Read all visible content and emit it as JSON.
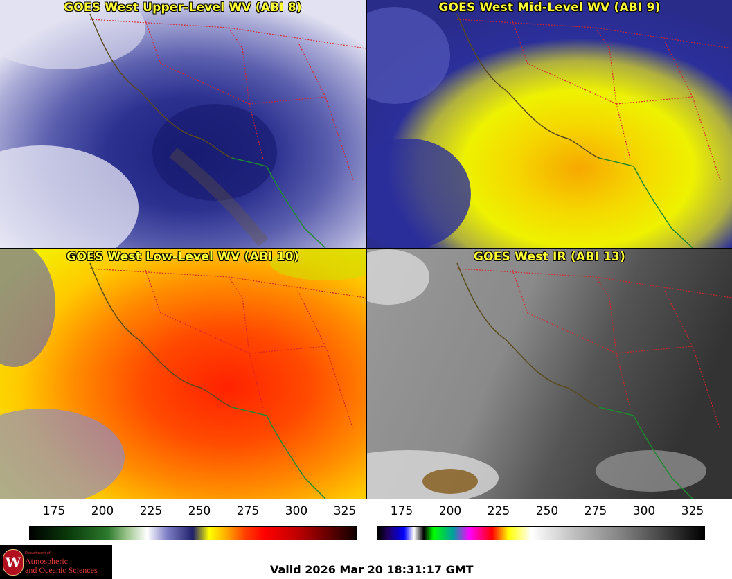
{
  "panels": [
    {
      "title": "GOES West Upper-Level WV (ABI 8)",
      "colormap": "wv"
    },
    {
      "title": "GOES West Mid-Level WV (ABI 9)",
      "colormap": "wv"
    },
    {
      "title": "GOES West Low-Level WV (ABI 10)",
      "colormap": "wv"
    },
    {
      "title": "GOES West IR (ABI 13)",
      "colormap": "ir"
    }
  ],
  "colorbars": {
    "left": {
      "ticks": [
        "175",
        "200",
        "225",
        "250",
        "275",
        "300",
        "325"
      ]
    },
    "right": {
      "ticks": [
        "175",
        "200",
        "225",
        "250",
        "275",
        "300",
        "325"
      ]
    }
  },
  "logo": {
    "seal_letter": "W",
    "dept": "Department of",
    "line1": "Atmospheric",
    "line2": "and Oceanic Sciences"
  },
  "valid_time": "Valid 2026 Mar 20 18:31:17 GMT",
  "colors": {
    "state_borders": "#d9232a",
    "coastline": "#5a4a1a",
    "mexico_coast": "#1e8a2e",
    "title_text": "#ffff33"
  }
}
